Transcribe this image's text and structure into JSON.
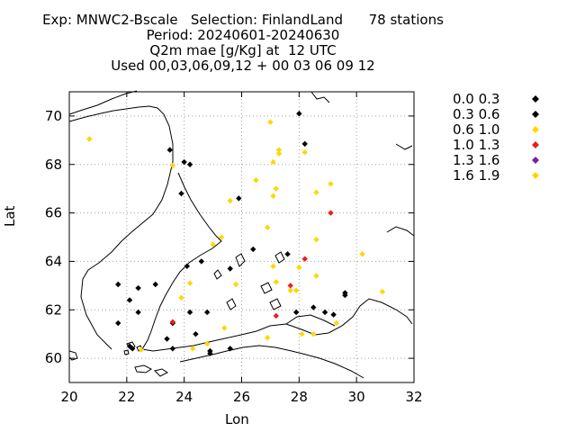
{
  "chart_data": {
    "type": "scatter",
    "title_lines": [
      "Exp: MNWC2-Bscale   Selection: FinlandLand      78 stations",
      "Period: 20240601-20240630",
      "Q2m mae [g/Kg] at  12 UTC",
      "Used 00,03,06,09,12 + 00 03 06 09 12"
    ],
    "xlabel": "Lon",
    "ylabel": "Lat",
    "xlim": [
      20,
      32
    ],
    "ylim": [
      59,
      71
    ],
    "xticks": [
      20,
      22,
      24,
      26,
      28,
      30,
      32
    ],
    "yticks": [
      60,
      62,
      64,
      66,
      68,
      70
    ],
    "grid": true,
    "legend_position": "right",
    "series": [
      {
        "name": "0.0 0.3",
        "color": "#000000",
        "points": []
      },
      {
        "name": "0.3 0.6",
        "color": "#000000",
        "points": [
          [
            23.5,
            68.6
          ],
          [
            24.0,
            68.1
          ],
          [
            24.2,
            68.0
          ],
          [
            28.0,
            70.1
          ],
          [
            28.2,
            68.85
          ],
          [
            23.9,
            66.8
          ],
          [
            25.9,
            66.6
          ],
          [
            26.4,
            64.5
          ],
          [
            27.6,
            64.3
          ],
          [
            24.1,
            63.8
          ],
          [
            24.6,
            64.0
          ],
          [
            25.6,
            63.7
          ],
          [
            21.7,
            63.05
          ],
          [
            23.0,
            63.05
          ],
          [
            22.1,
            62.4
          ],
          [
            22.4,
            61.9
          ],
          [
            22.4,
            62.9
          ],
          [
            24.2,
            61.9
          ],
          [
            24.8,
            61.9
          ],
          [
            27.9,
            61.9
          ],
          [
            28.5,
            62.1
          ],
          [
            28.9,
            61.9
          ],
          [
            29.2,
            61.8
          ],
          [
            29.6,
            62.6
          ],
          [
            29.6,
            62.7
          ],
          [
            21.7,
            61.45
          ],
          [
            23.6,
            61.45
          ],
          [
            24.4,
            61.0
          ],
          [
            23.4,
            60.8
          ],
          [
            23.6,
            60.4
          ],
          [
            22.1,
            60.5
          ],
          [
            22.2,
            60.4
          ],
          [
            24.9,
            60.3
          ],
          [
            24.9,
            60.2
          ],
          [
            25.6,
            60.4
          ]
        ]
      },
      {
        "name": "0.6 1.0",
        "color": "#ffd700",
        "points": [
          [
            20.7,
            69.05
          ],
          [
            23.6,
            67.95
          ],
          [
            27.0,
            69.75
          ],
          [
            27.3,
            68.6
          ],
          [
            27.3,
            68.45
          ],
          [
            28.2,
            68.5
          ],
          [
            27.1,
            68.1
          ],
          [
            26.5,
            67.35
          ],
          [
            27.2,
            67.0
          ],
          [
            27.1,
            66.7
          ],
          [
            28.6,
            66.85
          ],
          [
            29.1,
            67.2
          ],
          [
            25.6,
            66.5
          ],
          [
            26.9,
            65.4
          ],
          [
            25.3,
            65.0
          ],
          [
            25.0,
            64.7
          ],
          [
            28.6,
            64.9
          ],
          [
            30.2,
            64.3
          ],
          [
            27.1,
            63.8
          ],
          [
            28.0,
            63.75
          ],
          [
            28.6,
            63.4
          ],
          [
            24.2,
            63.1
          ],
          [
            25.8,
            63.05
          ],
          [
            27.2,
            63.15
          ],
          [
            27.7,
            62.8
          ],
          [
            27.9,
            62.8
          ],
          [
            30.9,
            62.75
          ],
          [
            23.9,
            62.5
          ],
          [
            29.3,
            61.45
          ],
          [
            25.4,
            61.25
          ],
          [
            28.1,
            61.0
          ],
          [
            28.5,
            61.0
          ],
          [
            26.9,
            60.85
          ],
          [
            24.8,
            60.6
          ],
          [
            24.3,
            60.4
          ],
          [
            22.5,
            60.35
          ]
        ]
      },
      {
        "name": "1.0 1.3",
        "color": "#e8201c",
        "points": [
          [
            29.1,
            66.0
          ],
          [
            28.2,
            64.1
          ],
          [
            27.7,
            63.0
          ],
          [
            27.2,
            61.75
          ],
          [
            23.6,
            61.5
          ]
        ]
      },
      {
        "name": "1.3 1.6",
        "color": "#7b1fa2",
        "points": []
      },
      {
        "name": "1.6 1.9",
        "color": "#ffd700",
        "points": []
      }
    ]
  }
}
